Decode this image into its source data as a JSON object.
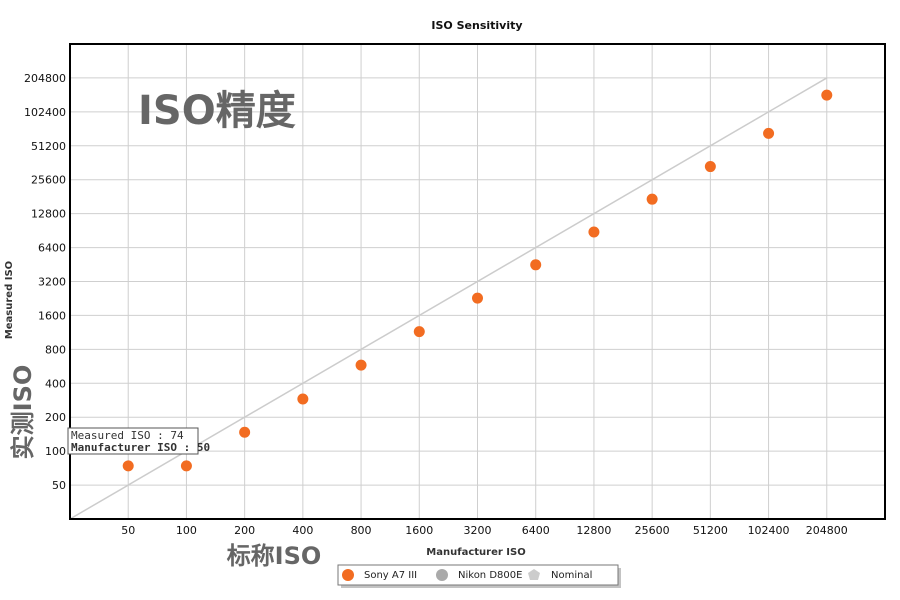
{
  "chart_data": {
    "type": "scatter",
    "title": "ISO Sensitivity",
    "xlabel": "Manufacturer ISO",
    "ylabel": "Measured ISO",
    "x_scale": "log2",
    "y_scale": "log2",
    "x_ticks": [
      "50",
      "100",
      "200",
      "400",
      "800",
      "1600",
      "3200",
      "6400",
      "12800",
      "25600",
      "51200",
      "102400",
      "204800"
    ],
    "y_ticks": [
      "50",
      "100",
      "200",
      "400",
      "800",
      "1600",
      "3200",
      "6400",
      "12800",
      "25600",
      "51200",
      "102400",
      "204800"
    ],
    "xlim": [
      25,
      409600
    ],
    "ylim": [
      25,
      409600
    ],
    "grid": true,
    "legend_position": "bottom-center",
    "series": [
      {
        "name": "Sony A7 III",
        "color": "#f26c21",
        "marker": "circle",
        "x": [
          50,
          100,
          200,
          400,
          800,
          1600,
          3200,
          6400,
          12800,
          25600,
          51200,
          102400,
          204800
        ],
        "y": [
          74,
          74,
          147,
          290,
          580,
          1150,
          2280,
          4500,
          8800,
          17200,
          33500,
          66000,
          144000
        ]
      },
      {
        "name": "Nikon D800E",
        "color": "#aaaaaa",
        "marker": "circle",
        "x": [],
        "y": []
      },
      {
        "name": "Nominal",
        "color": "#cccccc",
        "marker": "pentagon",
        "type": "line",
        "x": [
          25,
          204800
        ],
        "y": [
          25,
          204800
        ]
      }
    ]
  },
  "overlays": {
    "title_cn": "ISO精度",
    "ylabel_cn": "实测ISO",
    "xlabel_cn": "标称ISO"
  },
  "tooltip": {
    "line1": "Measured ISO : 74",
    "line2": "Manufacturer ISO : 50"
  }
}
